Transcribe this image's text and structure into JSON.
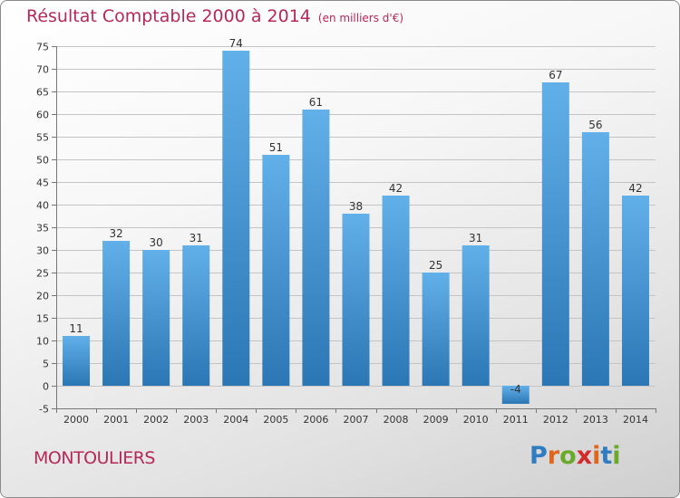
{
  "title": "Résultat Comptable 2000 à 2014",
  "unit_note": "(en milliers d'€)",
  "location": "MONTOULIERS",
  "brand": {
    "letters": [
      "P",
      "r",
      "o",
      "x",
      "i",
      "t",
      "i"
    ],
    "colors": [
      "#2f7cc0",
      "#e0661b",
      "#6aaa2a",
      "#d42a2a",
      "#e0661b",
      "#2f7cc0",
      "#6aaa2a"
    ]
  },
  "colors": {
    "title": "#b5285a",
    "bar_light": "#62b0ea",
    "bar_dark": "#2b76b4",
    "grid": "#c4c4c4",
    "tick_text": "#333333"
  },
  "chart_data": {
    "type": "bar",
    "title": "Résultat Comptable 2000 à 2014",
    "xlabel": "",
    "ylabel": "",
    "categories": [
      "2000",
      "2001",
      "2002",
      "2003",
      "2004",
      "2005",
      "2006",
      "2007",
      "2008",
      "2009",
      "2010",
      "2011",
      "2012",
      "2013",
      "2014"
    ],
    "values": [
      11,
      32,
      30,
      31,
      74,
      51,
      61,
      38,
      42,
      25,
      31,
      -4,
      67,
      56,
      42
    ],
    "labels": [
      "11",
      "32",
      "30",
      "31",
      "74",
      "51",
      "61",
      "38",
      "42",
      "25",
      "31",
      "-4",
      "67",
      "56",
      "42"
    ],
    "ylim": [
      -5,
      75
    ],
    "yticks": [
      -5,
      0,
      5,
      10,
      15,
      20,
      25,
      30,
      35,
      40,
      45,
      50,
      55,
      60,
      65,
      70,
      75
    ],
    "grid": true
  }
}
